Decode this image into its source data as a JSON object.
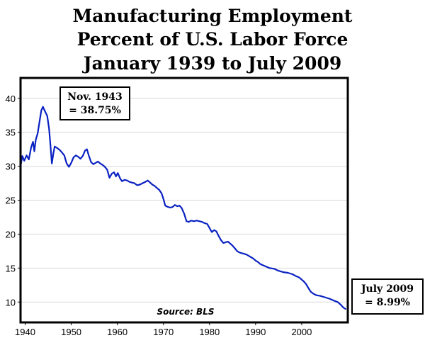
{
  "chart_data": {
    "type": "line",
    "title": [
      "Manufacturing Employment",
      "Percent of U.S. Labor Force",
      "January 1939 to July 2009"
    ],
    "xlabel": "",
    "ylabel": "",
    "xlim": [
      1939,
      2010
    ],
    "ylim": [
      7,
      43
    ],
    "x_ticks": [
      1940,
      1950,
      1960,
      1970,
      1980,
      1990,
      2000
    ],
    "y_ticks": [
      10,
      15,
      20,
      25,
      30,
      35,
      40
    ],
    "grid": "horizontal",
    "source": "Source: BLS",
    "series": [
      {
        "name": "Manufacturing employment (% of labor force)",
        "color": "#0b22c2",
        "points": [
          [
            1939.0,
            30.0
          ],
          [
            1939.4,
            31.5
          ],
          [
            1939.8,
            30.8
          ],
          [
            1940.3,
            31.6
          ],
          [
            1940.8,
            31.0
          ],
          [
            1941.3,
            32.8
          ],
          [
            1941.7,
            33.6
          ],
          [
            1942.0,
            32.2
          ],
          [
            1942.3,
            33.9
          ],
          [
            1942.7,
            34.8
          ],
          [
            1943.1,
            36.5
          ],
          [
            1943.5,
            38.2
          ],
          [
            1943.85,
            38.75
          ],
          [
            1944.3,
            38.1
          ],
          [
            1944.8,
            37.4
          ],
          [
            1945.2,
            35.5
          ],
          [
            1945.5,
            33.0
          ],
          [
            1945.8,
            30.4
          ],
          [
            1946.1,
            31.8
          ],
          [
            1946.4,
            32.9
          ],
          [
            1946.9,
            32.7
          ],
          [
            1947.5,
            32.4
          ],
          [
            1948.0,
            32.0
          ],
          [
            1948.5,
            31.6
          ],
          [
            1949.0,
            30.4
          ],
          [
            1949.5,
            29.9
          ],
          [
            1950.0,
            30.5
          ],
          [
            1950.5,
            31.3
          ],
          [
            1951.0,
            31.6
          ],
          [
            1951.5,
            31.4
          ],
          [
            1952.0,
            31.1
          ],
          [
            1952.5,
            31.5
          ],
          [
            1953.0,
            32.3
          ],
          [
            1953.4,
            32.5
          ],
          [
            1953.8,
            31.6
          ],
          [
            1954.3,
            30.6
          ],
          [
            1954.8,
            30.3
          ],
          [
            1955.3,
            30.5
          ],
          [
            1955.8,
            30.7
          ],
          [
            1956.3,
            30.4
          ],
          [
            1956.8,
            30.2
          ],
          [
            1957.3,
            29.9
          ],
          [
            1957.8,
            29.5
          ],
          [
            1958.3,
            28.3
          ],
          [
            1958.8,
            28.9
          ],
          [
            1959.3,
            29.1
          ],
          [
            1959.7,
            28.5
          ],
          [
            1960.1,
            29.0
          ],
          [
            1960.6,
            28.2
          ],
          [
            1961.0,
            27.8
          ],
          [
            1961.6,
            28.0
          ],
          [
            1962.1,
            27.9
          ],
          [
            1962.6,
            27.7
          ],
          [
            1963.1,
            27.6
          ],
          [
            1963.7,
            27.5
          ],
          [
            1964.3,
            27.2
          ],
          [
            1964.9,
            27.3
          ],
          [
            1965.5,
            27.5
          ],
          [
            1966.1,
            27.7
          ],
          [
            1966.6,
            27.9
          ],
          [
            1967.1,
            27.6
          ],
          [
            1967.6,
            27.3
          ],
          [
            1968.1,
            27.1
          ],
          [
            1968.6,
            26.8
          ],
          [
            1969.1,
            26.5
          ],
          [
            1969.6,
            26.0
          ],
          [
            1970.0,
            25.2
          ],
          [
            1970.4,
            24.2
          ],
          [
            1971.0,
            24.0
          ],
          [
            1971.5,
            23.9
          ],
          [
            1972.0,
            24.0
          ],
          [
            1972.5,
            24.3
          ],
          [
            1973.0,
            24.1
          ],
          [
            1973.5,
            24.2
          ],
          [
            1974.0,
            23.8
          ],
          [
            1974.5,
            23.0
          ],
          [
            1975.0,
            21.9
          ],
          [
            1975.5,
            21.8
          ],
          [
            1976.0,
            22.0
          ],
          [
            1976.6,
            21.9
          ],
          [
            1977.2,
            22.0
          ],
          [
            1977.8,
            21.9
          ],
          [
            1978.4,
            21.8
          ],
          [
            1979.0,
            21.6
          ],
          [
            1979.5,
            21.5
          ],
          [
            1980.0,
            20.9
          ],
          [
            1980.5,
            20.3
          ],
          [
            1981.0,
            20.6
          ],
          [
            1981.5,
            20.4
          ],
          [
            1982.0,
            19.7
          ],
          [
            1982.5,
            19.1
          ],
          [
            1983.0,
            18.7
          ],
          [
            1983.5,
            18.8
          ],
          [
            1984.0,
            18.9
          ],
          [
            1984.5,
            18.6
          ],
          [
            1985.0,
            18.3
          ],
          [
            1985.5,
            17.9
          ],
          [
            1986.0,
            17.5
          ],
          [
            1986.5,
            17.3
          ],
          [
            1987.0,
            17.2
          ],
          [
            1987.5,
            17.1
          ],
          [
            1988.0,
            17.0
          ],
          [
            1988.5,
            16.8
          ],
          [
            1989.0,
            16.6
          ],
          [
            1989.5,
            16.4
          ],
          [
            1990.0,
            16.1
          ],
          [
            1990.5,
            15.9
          ],
          [
            1991.0,
            15.6
          ],
          [
            1992.0,
            15.3
          ],
          [
            1993.0,
            15.0
          ],
          [
            1994.0,
            14.9
          ],
          [
            1995.0,
            14.6
          ],
          [
            1996.0,
            14.4
          ],
          [
            1997.0,
            14.3
          ],
          [
            1998.0,
            14.1
          ],
          [
            1998.8,
            13.8
          ],
          [
            1999.5,
            13.6
          ],
          [
            2000.0,
            13.3
          ],
          [
            2000.5,
            13.0
          ],
          [
            2001.0,
            12.6
          ],
          [
            2001.5,
            12.0
          ],
          [
            2002.0,
            11.5
          ],
          [
            2002.6,
            11.2
          ],
          [
            2003.2,
            11.0
          ],
          [
            2004.0,
            10.9
          ],
          [
            2005.0,
            10.7
          ],
          [
            2006.0,
            10.5
          ],
          [
            2007.0,
            10.2
          ],
          [
            2007.8,
            10.0
          ],
          [
            2008.5,
            9.6
          ],
          [
            2009.0,
            9.2
          ],
          [
            2009.5,
            8.99
          ]
        ]
      }
    ],
    "annotations": [
      {
        "lines": [
          "Nov. 1943",
          "= 38.75%"
        ],
        "x": 1943.85,
        "y": 38.75
      },
      {
        "lines": [
          "July 2009",
          "= 8.99%"
        ],
        "x": 2009.5,
        "y": 8.99
      }
    ]
  }
}
